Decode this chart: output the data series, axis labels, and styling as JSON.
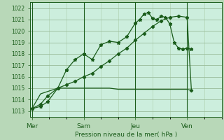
{
  "background_color": "#b8d8b8",
  "plot_bg_color": "#cceedd",
  "grid_color_major": "#99bb99",
  "grid_color_minor": "#aaccaa",
  "line_color": "#1a5c1a",
  "xlabel": "Pression niveau de la mer( hPa )",
  "yticks": [
    1013,
    1014,
    1015,
    1016,
    1017,
    1018,
    1019,
    1020,
    1021,
    1022
  ],
  "ylim": [
    1012.5,
    1022.5
  ],
  "xlim": [
    -0.1,
    9.5
  ],
  "xtick_labels": [
    "Mer",
    "Sam",
    "Jeu",
    "Ven"
  ],
  "xtick_positions": [
    0,
    3,
    6,
    9
  ],
  "num_minor_x": 3,
  "series1_x": [
    0,
    0.5,
    0.9,
    1.5,
    2.0,
    2.5,
    3.0,
    3.5,
    4.0,
    4.5,
    5.0,
    5.5,
    6.0,
    6.25,
    6.5,
    6.75,
    7.0,
    7.25,
    7.5,
    7.75,
    8.0,
    8.25,
    8.5,
    8.75,
    9.0,
    9.25
  ],
  "series1_y": [
    1013.2,
    1013.4,
    1013.8,
    1015.0,
    1016.6,
    1017.5,
    1018.0,
    1017.5,
    1018.8,
    1019.1,
    1019.0,
    1019.5,
    1020.7,
    1021.0,
    1021.5,
    1021.6,
    1021.1,
    1021.0,
    1021.3,
    1021.2,
    1020.6,
    1019.0,
    1018.5,
    1018.4,
    1018.5,
    1018.4
  ],
  "series2_x": [
    0,
    0.5,
    0.9,
    1.5,
    2.0,
    2.5,
    3.0,
    3.5,
    4.0,
    4.5,
    5.0,
    5.5,
    6.0,
    6.5,
    7.0,
    7.5,
    8.0,
    8.5,
    9.0,
    9.25
  ],
  "series2_y": [
    1013.2,
    1013.6,
    1014.3,
    1015.0,
    1015.3,
    1015.6,
    1016.0,
    1016.3,
    1016.9,
    1017.4,
    1018.0,
    1018.5,
    1019.2,
    1019.8,
    1020.4,
    1020.9,
    1021.2,
    1021.3,
    1021.2,
    1014.8
  ],
  "series3_x": [
    0,
    0.5,
    1.5,
    2.0,
    3.0,
    3.5,
    4.0,
    4.5,
    5.0,
    5.5,
    6.0,
    6.5,
    7.0,
    7.5,
    8.0,
    8.5,
    9.0,
    9.25
  ],
  "series3_y": [
    1013.2,
    1014.5,
    1015.0,
    1015.0,
    1015.0,
    1015.0,
    1015.0,
    1015.0,
    1014.9,
    1014.9,
    1014.9,
    1014.9,
    1014.9,
    1014.9,
    1014.9,
    1014.9,
    1014.9,
    1014.8
  ]
}
